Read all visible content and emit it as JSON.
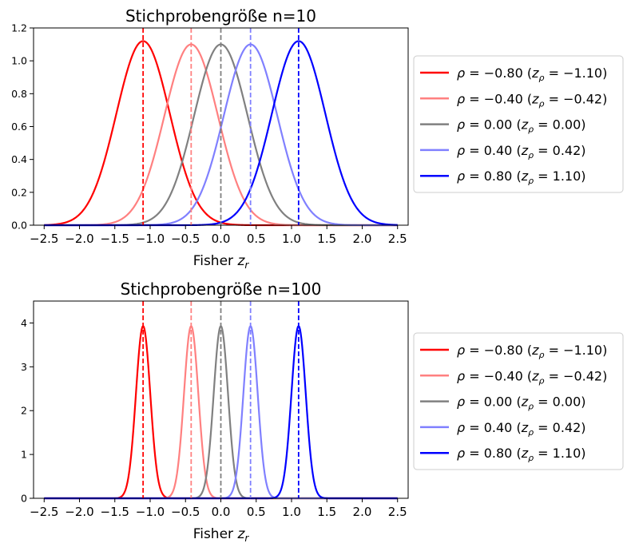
{
  "chart_data": [
    {
      "type": "line",
      "title": "Stichprobengröße n=10",
      "xlabel": "Fisher z_r",
      "ylabel": "",
      "xlim": [
        -2.65,
        2.65
      ],
      "ylim": [
        0,
        1.2
      ],
      "x_ticks": [
        "−2.5",
        "−2.0",
        "−1.5",
        "−1.0",
        "−0.5",
        "0.0",
        "0.5",
        "1.0",
        "1.5",
        "2.0",
        "2.5"
      ],
      "y_ticks": [
        "0.0",
        "0.2",
        "0.4",
        "0.6",
        "0.8",
        "1.0",
        "1.2"
      ],
      "sample_size": 10,
      "x_range": [
        -2.5,
        2.5
      ],
      "legend_position": "right, outside",
      "grid": false,
      "series": [
        {
          "name": "ρ = −0.80 (z_ρ = −1.10)",
          "rho": -0.8,
          "z_rho": -1.1,
          "peak": 1.12,
          "color": "#ff0000"
        },
        {
          "name": "ρ = −0.40 (z_ρ = −0.42)",
          "rho": -0.4,
          "z_rho": -0.42,
          "peak": 1.1,
          "color": "#ff8080"
        },
        {
          "name": "ρ = 0.00 (z_ρ = 0.00)",
          "rho": 0.0,
          "z_rho": 0.0,
          "peak": 1.1,
          "color": "#808080"
        },
        {
          "name": "ρ = 0.40 (z_ρ = 0.42)",
          "rho": 0.4,
          "z_rho": 0.42,
          "peak": 1.1,
          "color": "#8080ff"
        },
        {
          "name": "ρ = 0.80 (z_ρ = 1.10)",
          "rho": 0.8,
          "z_rho": 1.1,
          "peak": 1.12,
          "color": "#0000ff"
        }
      ],
      "vlines": [
        -1.1,
        -0.42,
        0.0,
        0.42,
        1.1
      ]
    },
    {
      "type": "line",
      "title": "Stichprobengröße n=100",
      "xlabel": "Fisher z_r",
      "ylabel": "",
      "xlim": [
        -2.65,
        2.65
      ],
      "ylim": [
        0,
        4.5
      ],
      "x_ticks": [
        "−2.5",
        "−2.0",
        "−1.5",
        "−1.0",
        "−0.5",
        "0.0",
        "0.5",
        "1.0",
        "1.5",
        "2.0",
        "2.5"
      ],
      "y_ticks": [
        "0",
        "1",
        "2",
        "3",
        "4"
      ],
      "sample_size": 100,
      "x_range": [
        -2.5,
        2.5
      ],
      "legend_position": "right, outside",
      "grid": false,
      "series": [
        {
          "name": "ρ = −0.80 (z_ρ = −1.10)",
          "rho": -0.8,
          "z_rho": -1.1,
          "peak": 3.93,
          "color": "#ff0000"
        },
        {
          "name": "ρ = −0.40 (z_ρ = −0.42)",
          "rho": -0.4,
          "z_rho": -0.42,
          "peak": 3.93,
          "color": "#ff8080"
        },
        {
          "name": "ρ = 0.00 (z_ρ = 0.00)",
          "rho": 0.0,
          "z_rho": 0.0,
          "peak": 3.93,
          "color": "#808080"
        },
        {
          "name": "ρ = 0.40 (z_ρ = 0.42)",
          "rho": 0.4,
          "z_rho": 0.42,
          "peak": 3.93,
          "color": "#8080ff"
        },
        {
          "name": "ρ = 0.80 (z_ρ = 1.10)",
          "rho": 0.8,
          "z_rho": 1.1,
          "peak": 3.93,
          "color": "#0000ff"
        }
      ],
      "vlines": [
        -1.1,
        -0.42,
        0.0,
        0.42,
        1.1
      ]
    }
  ]
}
